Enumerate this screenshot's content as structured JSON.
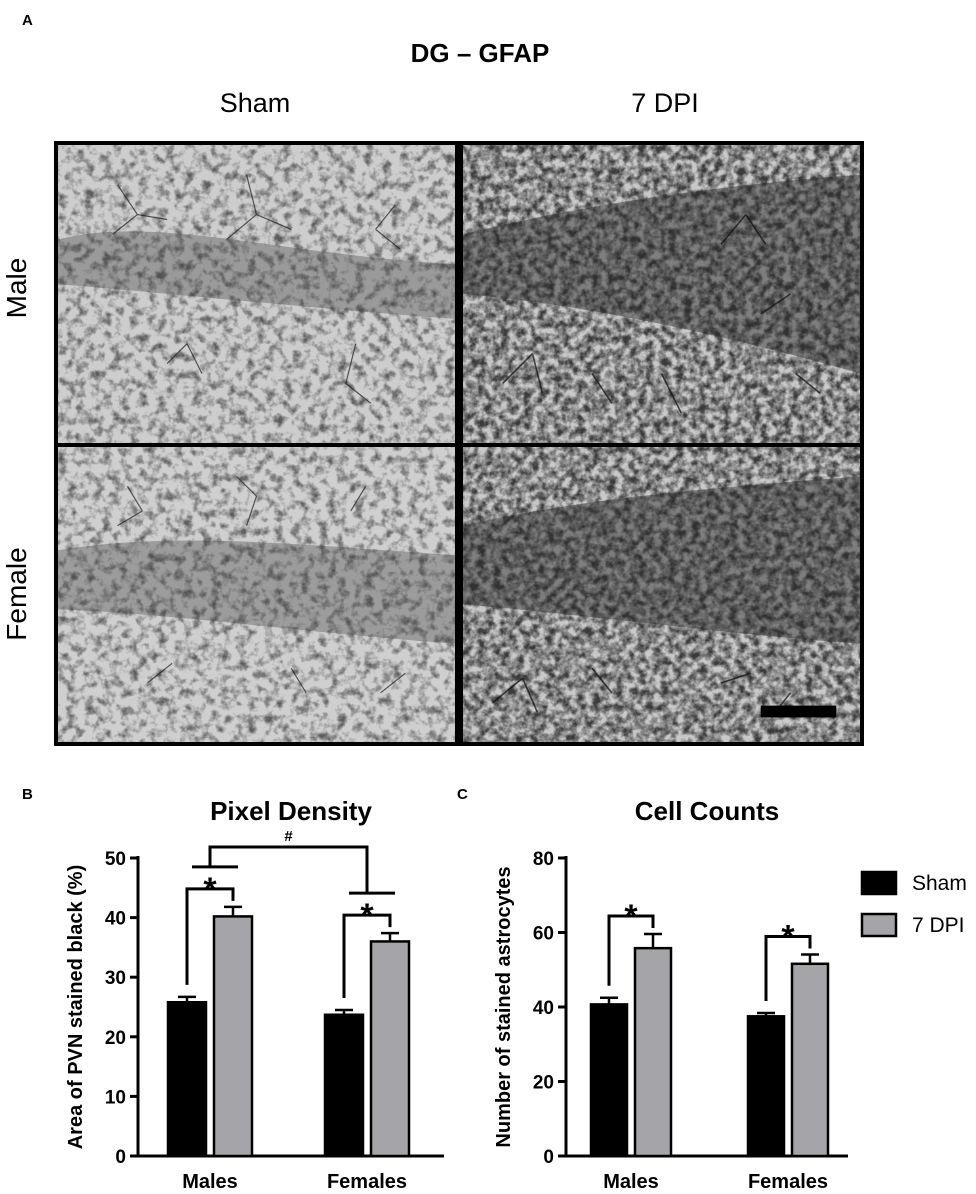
{
  "panel_a": {
    "letter": "A",
    "title": "DG – GFAP",
    "columns": [
      "Sham",
      "7 DPI"
    ],
    "rows": [
      "Male",
      "Female"
    ]
  },
  "chart_data": [
    {
      "panel": "B",
      "type": "bar",
      "title": "Pixel Density",
      "xlabel": "",
      "ylabel": "Area of PVN stained black (%)",
      "categories": [
        "Males",
        "Females"
      ],
      "series": [
        {
          "name": "Sham",
          "values": [
            25.8,
            23.7
          ],
          "errors": [
            0.9,
            0.8
          ],
          "color": "#000000"
        },
        {
          "name": "7 DPI",
          "values": [
            40.2,
            36.0
          ],
          "errors": [
            1.6,
            1.4
          ],
          "color": "#a5a5a9"
        }
      ],
      "ylim": [
        0,
        50
      ],
      "yticks": [
        0,
        10,
        20,
        30,
        40,
        50
      ],
      "annotations": [
        {
          "text": "*",
          "between": "Males Sham vs 7 DPI"
        },
        {
          "text": "*",
          "between": "Females Sham vs 7 DPI"
        },
        {
          "text": "#",
          "between": "Males vs Females"
        }
      ]
    },
    {
      "panel": "C",
      "type": "bar",
      "title": "Cell Counts",
      "xlabel": "",
      "ylabel": "Number of stained astrocytes",
      "categories": [
        "Males",
        "Females"
      ],
      "series": [
        {
          "name": "Sham",
          "values": [
            40.7,
            37.5
          ],
          "errors": [
            1.8,
            0.9
          ],
          "color": "#000000"
        },
        {
          "name": "7 DPI",
          "values": [
            55.8,
            51.6
          ],
          "errors": [
            3.8,
            2.5
          ],
          "color": "#a5a5a9"
        }
      ],
      "ylim": [
        0,
        80
      ],
      "yticks": [
        0,
        20,
        40,
        60,
        80
      ],
      "legend": {
        "position": "right",
        "entries": [
          "Sham",
          "7 DPI"
        ]
      },
      "annotations": [
        {
          "text": "*",
          "between": "Males Sham vs 7 DPI"
        },
        {
          "text": "*",
          "between": "Females Sham vs 7 DPI"
        }
      ]
    }
  ]
}
